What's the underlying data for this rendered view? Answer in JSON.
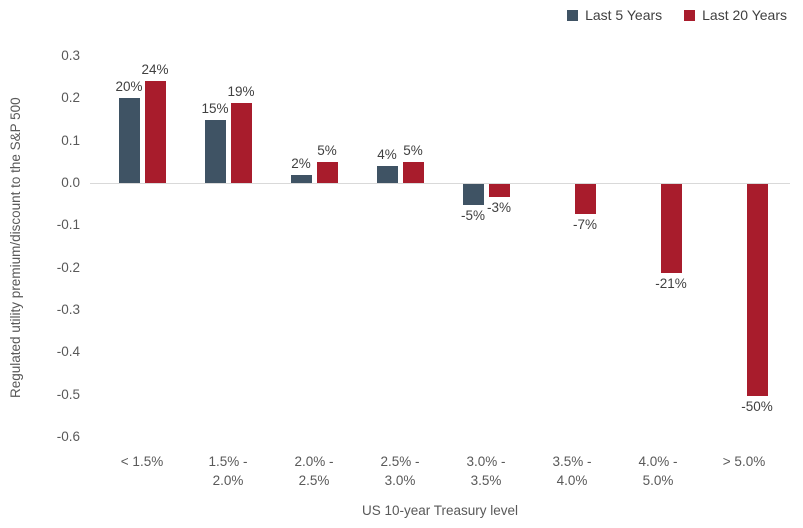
{
  "chart_data": {
    "type": "bar",
    "title": "",
    "xlabel": "US 10-year Treasury level",
    "ylabel": "Regulated utility premium/discount to the S&P 500",
    "categories": [
      "< 1.5%",
      "1.5% - 2.0%",
      "2.0% - 2.5%",
      "2.5% - 3.0%",
      "3.0% - 3.5%",
      "3.5% - 4.0%",
      "4.0% - 5.0%",
      "> 5.0%"
    ],
    "series": [
      {
        "name": "Last 5 Years",
        "color": "#3F5364",
        "values": [
          0.2,
          0.15,
          0.02,
          0.04,
          -0.05,
          null,
          null,
          null
        ],
        "labels": [
          "20%",
          "15%",
          "2%",
          "4%",
          "-5%",
          null,
          null,
          null
        ]
      },
      {
        "name": "Last 20 Years",
        "color": "#A81C2C",
        "values": [
          0.24,
          0.19,
          0.05,
          0.05,
          -0.03,
          -0.07,
          -0.21,
          -0.5
        ],
        "labels": [
          "24%",
          "19%",
          "5%",
          "5%",
          "-3%",
          "-7%",
          "-21%",
          "-50%"
        ]
      }
    ],
    "y_ticks": [
      0.3,
      0.2,
      0.1,
      0.0,
      -0.1,
      -0.2,
      -0.3,
      -0.4,
      -0.5,
      -0.6
    ],
    "ylim": [
      -0.6,
      0.3
    ],
    "grid": false,
    "legend_position": "top-right",
    "axis_color": "#D9D9D9",
    "tick_label_color": "#595959",
    "data_label_color": "#404040"
  }
}
